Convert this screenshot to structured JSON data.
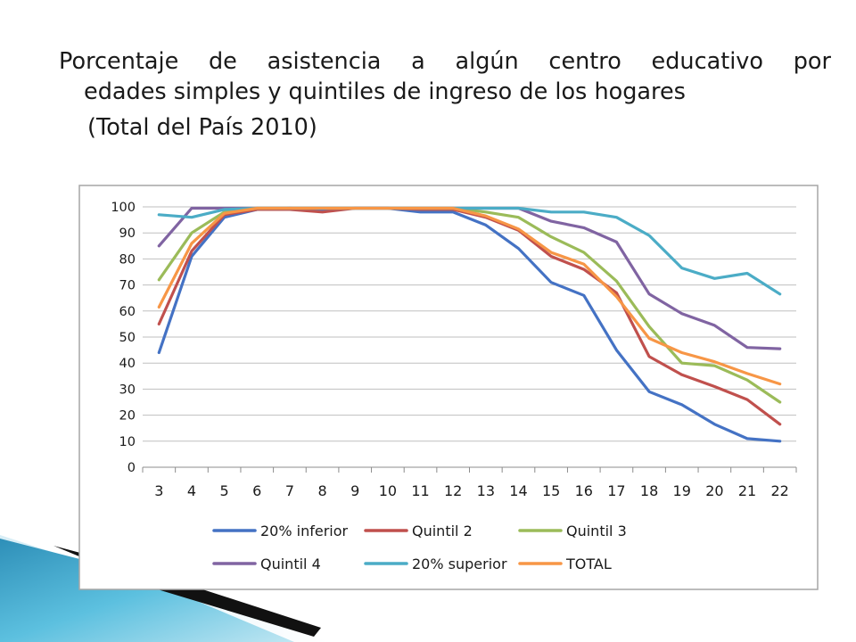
{
  "slide": {
    "title_line1": "Porcentaje de asistencia a algún centro educativo por",
    "title_line2": "edades simples y quintiles de ingreso de los hogares",
    "title_line3": "(Total del País 2010)"
  },
  "chart_data": {
    "type": "line",
    "title": "",
    "xlabel": "",
    "ylabel": "",
    "ylim": [
      0,
      100
    ],
    "yticks": [
      0,
      10,
      20,
      30,
      40,
      50,
      60,
      70,
      80,
      90,
      100
    ],
    "grid": true,
    "legend_position": "bottom",
    "categories": [
      "3",
      "4",
      "5",
      "6",
      "7",
      "8",
      "9",
      "10",
      "11",
      "12",
      "13",
      "14",
      "15",
      "16",
      "17",
      "18",
      "19",
      "20",
      "21",
      "22"
    ],
    "series": [
      {
        "name": "20% inferior",
        "color": "#4472C4",
        "values": [
          44,
          81,
          96,
          99,
          99.5,
          99,
          99.5,
          99.5,
          98,
          98,
          93,
          84,
          71,
          66,
          45,
          29,
          24,
          16.5,
          11,
          10
        ]
      },
      {
        "name": "Quintil 2",
        "color": "#C0504D",
        "values": [
          55,
          83,
          97,
          99,
          99,
          98,
          99.5,
          99.5,
          99,
          99,
          96,
          91,
          81,
          76,
          67,
          42.5,
          35.5,
          31,
          26,
          16.5
        ]
      },
      {
        "name": "Quintil 3",
        "color": "#9BBB59",
        "values": [
          72,
          90,
          98,
          99.5,
          99.5,
          99.5,
          99.5,
          99.5,
          99.5,
          99.5,
          98,
          96,
          88.5,
          82.5,
          71.5,
          54,
          40,
          39,
          33.5,
          25
        ]
      },
      {
        "name": "Quintil 4",
        "color": "#8064A2",
        "values": [
          85,
          99.5,
          99.5,
          99.5,
          99.5,
          99.5,
          99.5,
          99.5,
          99.5,
          99.5,
          99.5,
          99.5,
          94.5,
          92,
          86.5,
          66.5,
          59,
          54.5,
          46,
          45.5
        ]
      },
      {
        "name": "20% superior",
        "color": "#4BACC6",
        "values": [
          97,
          96,
          99,
          99.5,
          99.5,
          99.5,
          99.5,
          99.5,
          99.5,
          99.5,
          99.5,
          99.5,
          98,
          98,
          96,
          89,
          76.5,
          72.5,
          74.5,
          66.5
        ]
      },
      {
        "name": "TOTAL",
        "color": "#F79646",
        "values": [
          61.5,
          86,
          97.5,
          99.5,
          99.5,
          99.5,
          99.5,
          99.5,
          99.5,
          99.5,
          96.5,
          91.5,
          82.5,
          78,
          65.5,
          49.5,
          44,
          40.5,
          36,
          32
        ]
      }
    ]
  }
}
